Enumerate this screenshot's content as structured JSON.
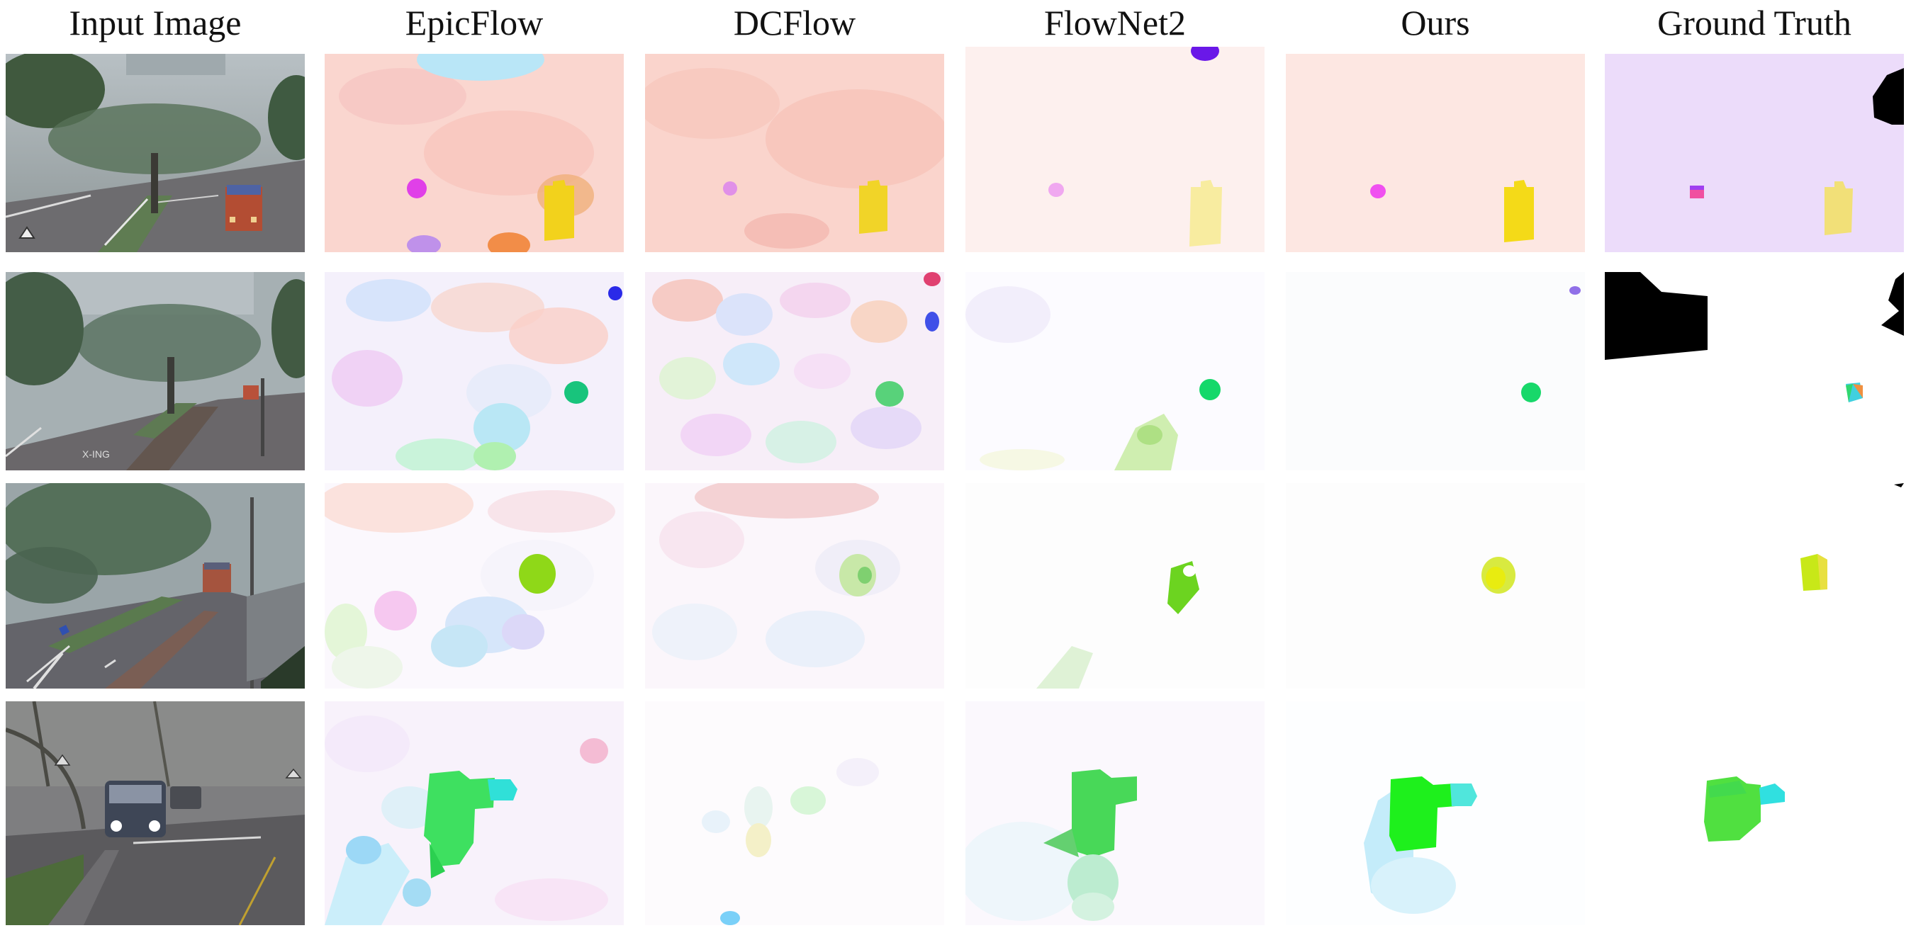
{
  "columns": {
    "input": "Input Image",
    "epicflow": "EpicFlow",
    "dcflow": "DCFlow",
    "flownet2": "FlowNet2",
    "ours": "Ours",
    "ground_truth": "Ground Truth"
  },
  "rows": [
    {
      "row_index": 1,
      "scene": "rainy intersection with tree and orange bus"
    },
    {
      "row_index": 2,
      "scene": "foggy intersection with distant bus and X-ING road marking",
      "road_text": "X-ING"
    },
    {
      "row_index": 3,
      "scene": "rainy street with bus under tree canopy"
    },
    {
      "row_index": 4,
      "scene": "dark rainy street with bus and headlights"
    }
  ],
  "colors": {
    "pink_flow": "#f8c8c0",
    "yellow_object": "#f0d020",
    "green_object": "#22d840",
    "cyan_object": "#30e0e0",
    "lavender_gt": "#ecdcfa",
    "occlusion": "#000000"
  }
}
